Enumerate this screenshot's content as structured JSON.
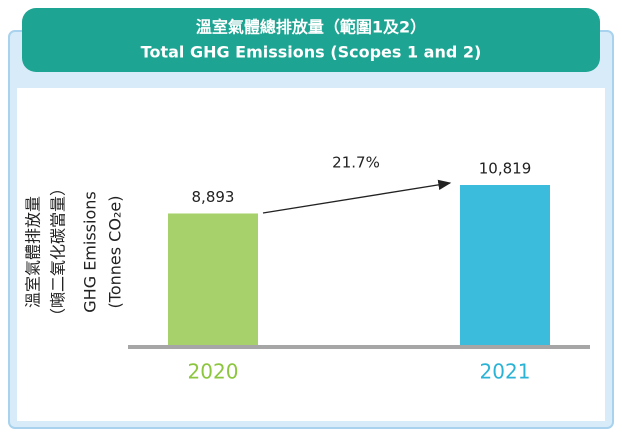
{
  "chart_data": {
    "type": "bar",
    "title": "溫室氣體總排放量（範圍1及2）",
    "subtitle": "Total GHG Emissions (Scopes 1 and 2)",
    "y_label": [
      "溫室氣體排放量",
      "（噸二氧化碳當量）",
      "GHG Emissions",
      "(Tonnes CO₂e)"
    ],
    "categories": [
      "2020",
      "2021"
    ],
    "values": [
      8893,
      10819
    ],
    "value_labels": [
      "8,893",
      "10,819"
    ],
    "colors": [
      "#a7d16b",
      "#3bbcdc"
    ],
    "label_colors": [
      "#8cc63f",
      "#2bb3d6"
    ],
    "annotation": "21.7%"
  }
}
